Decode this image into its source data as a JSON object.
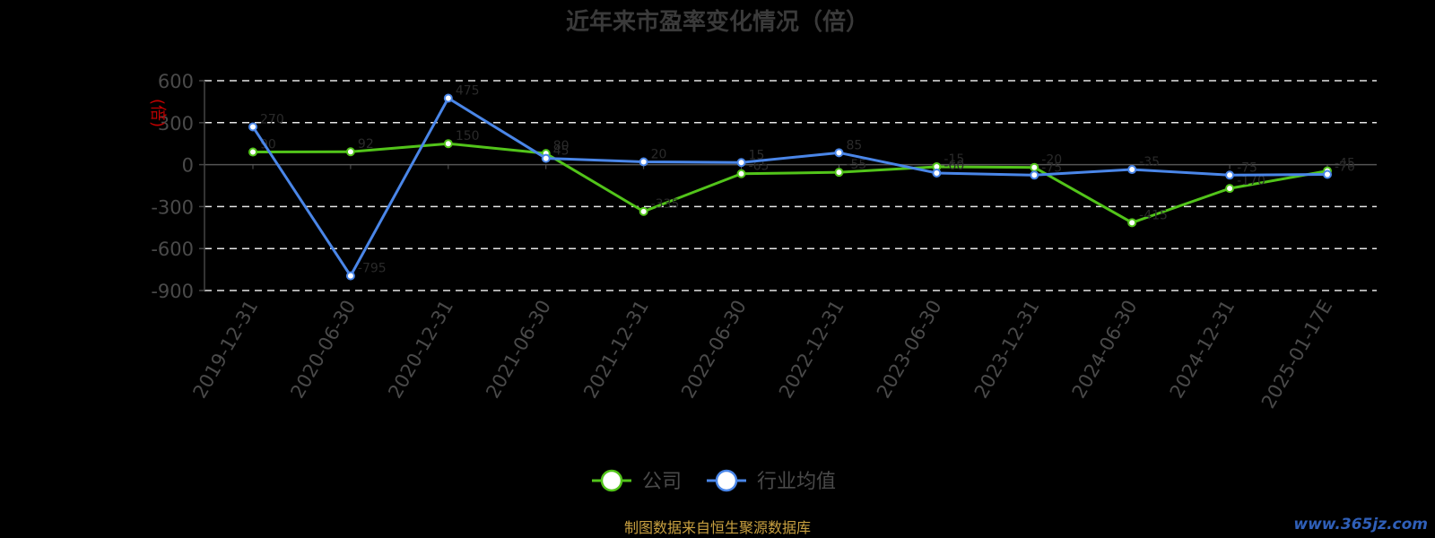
{
  "chart_data": {
    "type": "line",
    "title": "近年来市盈率变化情况（倍）",
    "ylabel": "(倍)",
    "ylim": [
      -900,
      600
    ],
    "yticks": [
      600,
      300,
      0,
      -300,
      -600,
      -900
    ],
    "grid": true,
    "legend_position": "bottom-center",
    "categories": [
      "2019-12-31",
      "2020-06-30",
      "2020-12-31",
      "2021-06-30",
      "2021-12-31",
      "2022-06-30",
      "2022-12-31",
      "2023-06-30",
      "2023-12-31",
      "2024-06-30",
      "2024-12-31",
      "2025-01-17E"
    ],
    "series": [
      {
        "name": "公司",
        "color": "#52c41a",
        "values": [
          90,
          92,
          150,
          80,
          -335,
          -65,
          -55,
          -15,
          -20,
          -415,
          -170,
          -45
        ]
      },
      {
        "name": "行业均值",
        "color": "#4a86e8",
        "values": [
          270,
          -795,
          475,
          45,
          20,
          15,
          85,
          -60,
          -75,
          -35,
          -75,
          -70
        ]
      }
    ]
  },
  "source": "制图数据来自恒生聚源数据库",
  "watermark": "www.365jz.com"
}
